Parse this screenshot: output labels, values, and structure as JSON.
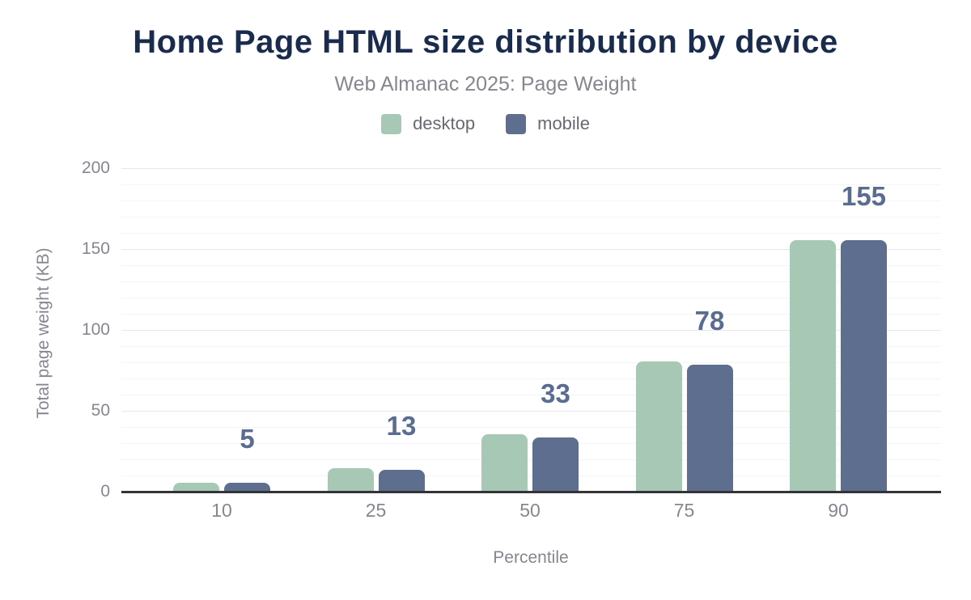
{
  "header": {
    "title": "Home Page HTML size distribution by device",
    "subtitle": "Web Almanac 2025: Page Weight"
  },
  "legend": {
    "items": [
      {
        "label": "desktop",
        "color": "#a6c8b4"
      },
      {
        "label": "mobile",
        "color": "#5e6e8e"
      }
    ]
  },
  "chart_data": {
    "type": "bar",
    "title": "Home Page HTML size distribution by device",
    "subtitle": "Web Almanac 2025: Page Weight",
    "categories": [
      "10",
      "25",
      "50",
      "75",
      "90"
    ],
    "series": [
      {
        "name": "desktop",
        "color": "#a6c8b4",
        "values": [
          5,
          14,
          35,
          80,
          155
        ]
      },
      {
        "name": "mobile",
        "color": "#5e6e8e",
        "values": [
          5,
          13,
          33,
          78,
          155
        ]
      }
    ],
    "data_labels": {
      "on_series": "mobile",
      "values": [
        "5",
        "13",
        "33",
        "78",
        "155"
      ],
      "color": "#5a6c90"
    },
    "xlabel": "Percentile",
    "ylabel": "Total page weight (KB)",
    "ylim": [
      0,
      200
    ],
    "yticks": [
      0,
      50,
      100,
      150,
      200
    ],
    "minor_grid_step": 10,
    "grid": "horizontal",
    "legend_position": "top-center"
  },
  "colors": {
    "title": "#1a2c4e",
    "axis_text": "#85878f",
    "legend_text": "#66696f",
    "axis_line": "#333438",
    "gridline_major": "#e7e7e9",
    "gridline_minor": "#f4f4f6",
    "background": "#ffffff"
  }
}
